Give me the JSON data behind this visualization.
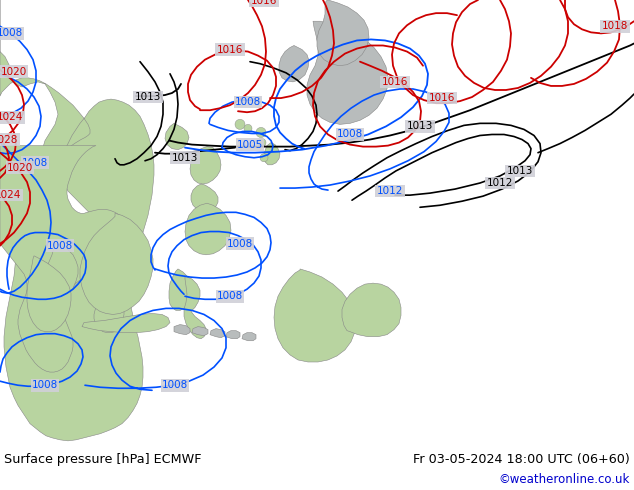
{
  "title_left": "Surface pressure [hPa] ECMWF",
  "title_right": "Fr 03-05-2024 18:00 UTC (06+60)",
  "copyright": "©weatheronline.co.uk",
  "figsize": [
    6.34,
    4.9
  ],
  "dpi": 100,
  "sea_color": "#d0d0d8",
  "land_green": "#b8d4a0",
  "land_gray": "#b8bcbc",
  "border_color": "#888888",
  "isobar_black": "#000000",
  "isobar_blue": "#0050ff",
  "isobar_red": "#cc0000",
  "bottom_bg": "#ffffff",
  "text_color": "#000000",
  "copyright_color": "#0000cc"
}
